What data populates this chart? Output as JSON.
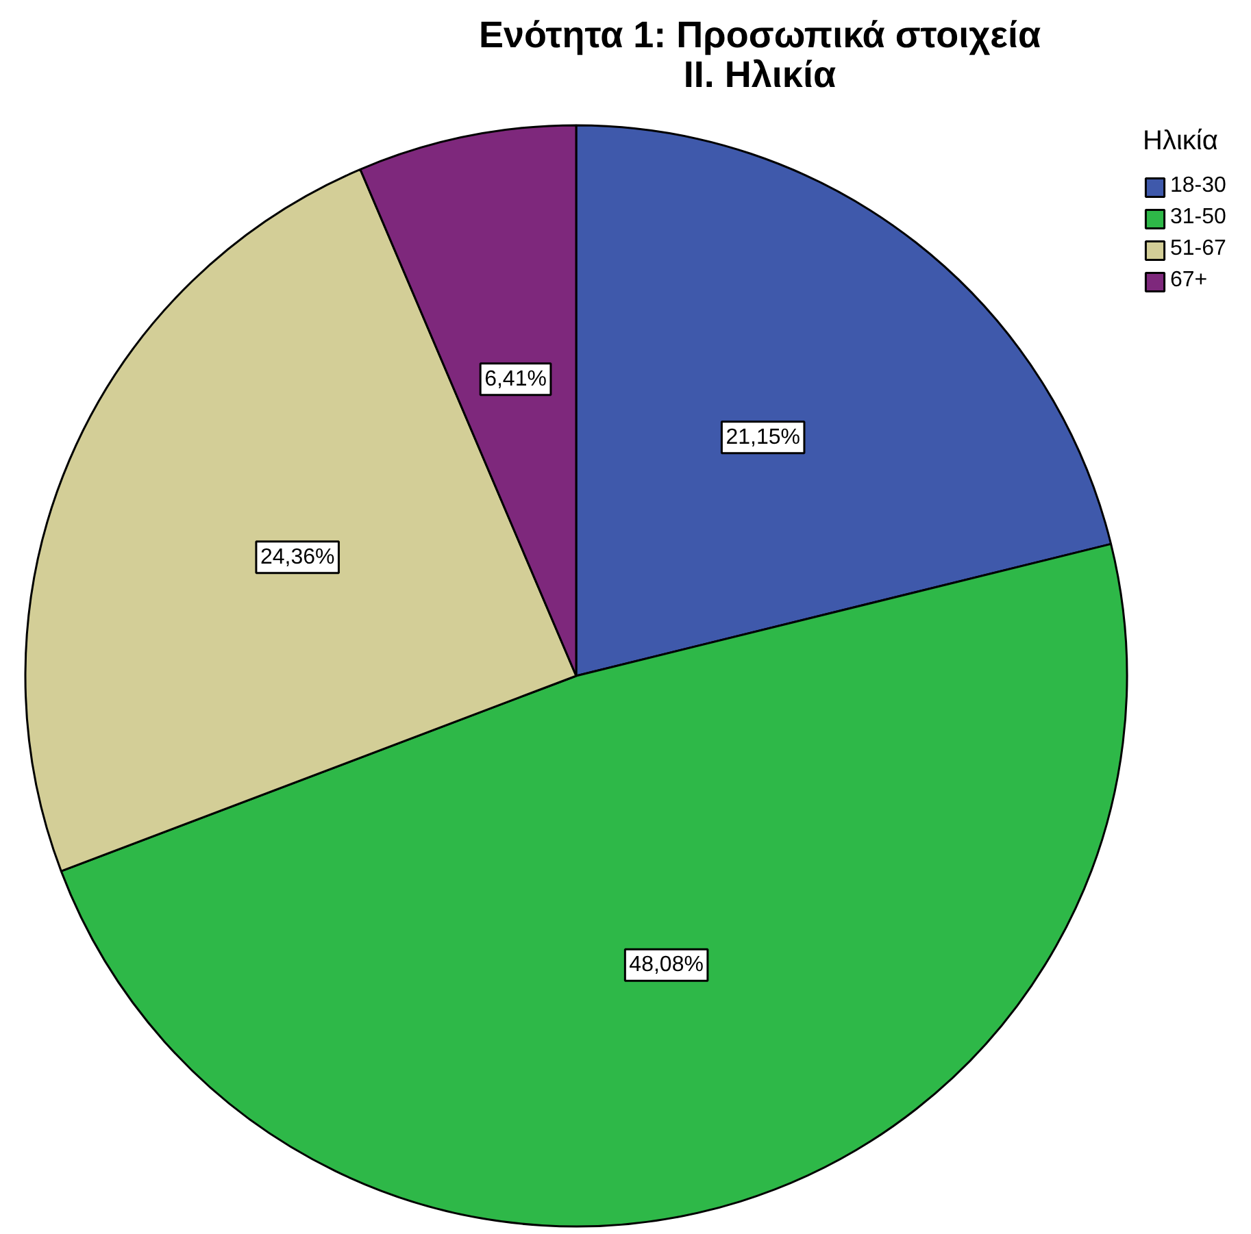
{
  "chart_data": {
    "type": "pie",
    "title": "Ενότητα 1: Προσωπικά στοιχεία",
    "subtitle": "II. Ηλικία",
    "legend_title": "Ηλικία",
    "categories": [
      "18-30",
      "31-50",
      "51-67",
      "67+"
    ],
    "values": [
      21.15,
      48.08,
      24.36,
      6.41
    ],
    "value_labels": [
      "21,15%",
      "48,08%",
      "24,36%",
      "6,41%"
    ],
    "colors": [
      "#3f59ab",
      "#2eb848",
      "#d3ce97",
      "#7e287c"
    ],
    "legend": "top right"
  }
}
